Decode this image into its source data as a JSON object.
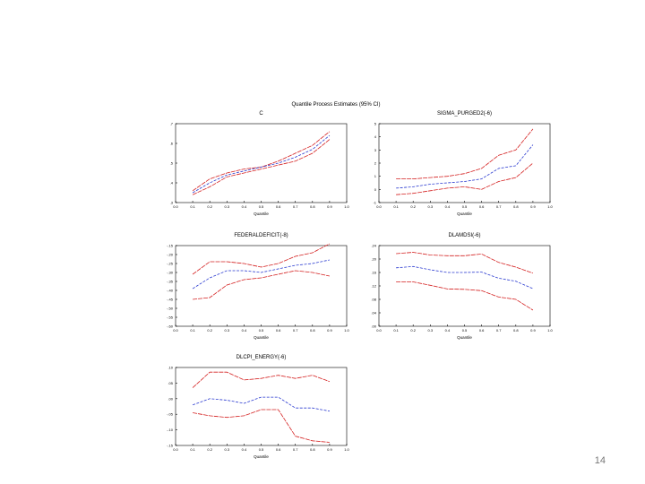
{
  "slide": {
    "number": "14"
  },
  "colors": {
    "estimate": "#2a3ad0",
    "ci": "#d42020",
    "axis": "#000000"
  },
  "figure": {
    "title": "Quantile Process Estimates (95% CI)"
  },
  "chart_data": [
    {
      "type": "line",
      "title": "C",
      "xlabel": "Quantile",
      "xlim": [
        0.0,
        1.0
      ],
      "ylim": [
        0.3,
        0.7
      ],
      "xticks": [
        "0.0",
        "0.1",
        "0.2",
        "0.3",
        "0.4",
        "0.5",
        "0.6",
        "0.7",
        "0.8",
        "0.9",
        "1.0"
      ],
      "yticks": [
        {
          "v": 0.3,
          "t": ".3"
        },
        {
          "v": 0.4,
          "t": ".4"
        },
        {
          "v": 0.5,
          "t": ".5"
        },
        {
          "v": 0.6,
          "t": ".6"
        },
        {
          "v": 0.7,
          "t": ".7"
        }
      ],
      "x": [
        0.1,
        0.2,
        0.3,
        0.4,
        0.5,
        0.6,
        0.7,
        0.8,
        0.9
      ],
      "series": [
        {
          "name": "upper",
          "role": "ci",
          "values": [
            0.36,
            0.42,
            0.45,
            0.47,
            0.48,
            0.51,
            0.55,
            0.59,
            0.66
          ]
        },
        {
          "name": "estimate",
          "role": "estimate",
          "values": [
            0.35,
            0.4,
            0.44,
            0.46,
            0.48,
            0.5,
            0.53,
            0.57,
            0.64
          ]
        },
        {
          "name": "lower",
          "role": "ci",
          "values": [
            0.34,
            0.38,
            0.43,
            0.45,
            0.47,
            0.49,
            0.51,
            0.55,
            0.62
          ]
        }
      ]
    },
    {
      "type": "line",
      "title": "SIGMA_PURGED2(-6)",
      "xlabel": "Quantile",
      "xlim": [
        0.0,
        1.0
      ],
      "ylim": [
        -1,
        5
      ],
      "xticks": [
        "0.0",
        "0.1",
        "0.2",
        "0.3",
        "0.4",
        "0.5",
        "0.6",
        "0.7",
        "0.8",
        "0.9",
        "1.0"
      ],
      "yticks": [
        {
          "v": -1,
          "t": "-1"
        },
        {
          "v": 0,
          "t": "0"
        },
        {
          "v": 1,
          "t": "1"
        },
        {
          "v": 2,
          "t": "2"
        },
        {
          "v": 3,
          "t": "3"
        },
        {
          "v": 4,
          "t": "4"
        },
        {
          "v": 5,
          "t": "5"
        }
      ],
      "x": [
        0.1,
        0.2,
        0.3,
        0.4,
        0.5,
        0.6,
        0.7,
        0.8,
        0.9
      ],
      "series": [
        {
          "name": "upper",
          "role": "ci",
          "values": [
            0.8,
            0.8,
            0.9,
            1.0,
            1.2,
            1.6,
            2.6,
            3.0,
            4.6
          ]
        },
        {
          "name": "estimate",
          "role": "estimate",
          "values": [
            0.1,
            0.2,
            0.4,
            0.5,
            0.6,
            0.8,
            1.6,
            1.8,
            3.4
          ]
        },
        {
          "name": "lower",
          "role": "ci",
          "values": [
            -0.4,
            -0.3,
            -0.1,
            0.1,
            0.2,
            0.0,
            0.6,
            0.9,
            2.0
          ]
        }
      ]
    },
    {
      "type": "line",
      "title": "FEDERALDEFICIT(-8)",
      "xlabel": "Quantile",
      "xlim": [
        0.0,
        1.0
      ],
      "ylim": [
        -0.6,
        -0.15
      ],
      "xticks": [
        "0.0",
        "0.1",
        "0.2",
        "0.3",
        "0.4",
        "0.5",
        "0.6",
        "0.7",
        "0.8",
        "0.9",
        "1.0"
      ],
      "yticks": [
        {
          "v": -0.15,
          "t": "-.15"
        },
        {
          "v": -0.2,
          "t": "-.20"
        },
        {
          "v": -0.25,
          "t": "-.25"
        },
        {
          "v": -0.3,
          "t": "-.30"
        },
        {
          "v": -0.35,
          "t": "-.35"
        },
        {
          "v": -0.4,
          "t": "-.40"
        },
        {
          "v": -0.45,
          "t": "-.45"
        },
        {
          "v": -0.5,
          "t": "-.50"
        },
        {
          "v": -0.55,
          "t": "-.55"
        },
        {
          "v": -0.6,
          "t": "-.60"
        }
      ],
      "x": [
        0.1,
        0.2,
        0.3,
        0.4,
        0.5,
        0.6,
        0.7,
        0.8,
        0.9
      ],
      "series": [
        {
          "name": "upper",
          "role": "ci",
          "values": [
            -0.31,
            -0.24,
            -0.24,
            -0.25,
            -0.27,
            -0.25,
            -0.21,
            -0.19,
            -0.14
          ]
        },
        {
          "name": "estimate",
          "role": "estimate",
          "values": [
            -0.39,
            -0.33,
            -0.29,
            -0.29,
            -0.3,
            -0.28,
            -0.26,
            -0.25,
            -0.23
          ]
        },
        {
          "name": "lower",
          "role": "ci",
          "values": [
            -0.45,
            -0.44,
            -0.37,
            -0.34,
            -0.33,
            -0.31,
            -0.29,
            -0.3,
            -0.32
          ]
        }
      ]
    },
    {
      "type": "line",
      "title": "DLAMDSI(-6)",
      "xlabel": "Quantile",
      "xlim": [
        0.0,
        1.0
      ],
      "ylim": [
        0.0,
        0.24
      ],
      "xticks": [
        "0.0",
        "0.1",
        "0.2",
        "0.3",
        "0.4",
        "0.5",
        "0.6",
        "0.7",
        "0.8",
        "0.9",
        "1.0"
      ],
      "yticks": [
        {
          "v": 0.0,
          "t": ".00"
        },
        {
          "v": 0.04,
          "t": ".04"
        },
        {
          "v": 0.08,
          "t": ".08"
        },
        {
          "v": 0.12,
          "t": ".12"
        },
        {
          "v": 0.16,
          "t": ".16"
        },
        {
          "v": 0.2,
          "t": ".20"
        },
        {
          "v": 0.24,
          "t": ".24"
        }
      ],
      "x": [
        0.1,
        0.2,
        0.3,
        0.4,
        0.5,
        0.6,
        0.7,
        0.8,
        0.9
      ],
      "series": [
        {
          "name": "upper",
          "role": "ci",
          "values": [
            0.216,
            0.22,
            0.212,
            0.21,
            0.21,
            0.215,
            0.19,
            0.176,
            0.158
          ]
        },
        {
          "name": "estimate",
          "role": "estimate",
          "values": [
            0.174,
            0.178,
            0.168,
            0.16,
            0.16,
            0.161,
            0.143,
            0.134,
            0.112
          ]
        },
        {
          "name": "lower",
          "role": "ci",
          "values": [
            0.132,
            0.132,
            0.122,
            0.111,
            0.11,
            0.106,
            0.087,
            0.08,
            0.048
          ]
        }
      ]
    },
    {
      "type": "line",
      "title": "DLCPI_ENERGY(-6)",
      "xlabel": "Quantile",
      "xlim": [
        0.0,
        1.0
      ],
      "ylim": [
        -0.15,
        0.1
      ],
      "xticks": [
        "0.0",
        "0.1",
        "0.2",
        "0.3",
        "0.4",
        "0.5",
        "0.6",
        "0.7",
        "0.8",
        "0.9",
        "1.0"
      ],
      "yticks": [
        {
          "v": 0.1,
          "t": ".10"
        },
        {
          "v": 0.05,
          "t": ".05"
        },
        {
          "v": 0.0,
          "t": ".00"
        },
        {
          "v": -0.05,
          "t": "-.05"
        },
        {
          "v": -0.1,
          "t": "-.10"
        },
        {
          "v": -0.15,
          "t": "-.15"
        }
      ],
      "x": [
        0.1,
        0.2,
        0.3,
        0.4,
        0.5,
        0.6,
        0.7,
        0.8,
        0.9
      ],
      "series": [
        {
          "name": "upper",
          "role": "ci",
          "values": [
            0.035,
            0.085,
            0.085,
            0.06,
            0.065,
            0.075,
            0.065,
            0.075,
            0.055
          ]
        },
        {
          "name": "estimate",
          "role": "estimate",
          "values": [
            -0.02,
            0.0,
            -0.005,
            -0.015,
            0.005,
            0.005,
            -0.03,
            -0.03,
            -0.04
          ]
        },
        {
          "name": "lower",
          "role": "ci",
          "values": [
            -0.045,
            -0.055,
            -0.06,
            -0.055,
            -0.035,
            -0.035,
            -0.12,
            -0.135,
            -0.14
          ]
        }
      ]
    }
  ]
}
